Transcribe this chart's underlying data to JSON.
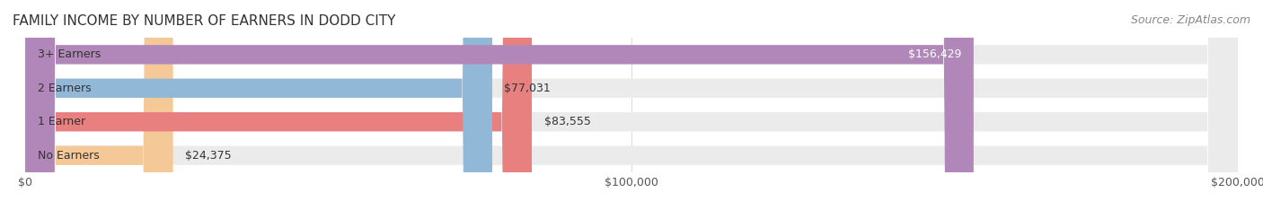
{
  "title": "FAMILY INCOME BY NUMBER OF EARNERS IN DODD CITY",
  "source": "Source: ZipAtlas.com",
  "categories": [
    "No Earners",
    "1 Earner",
    "2 Earners",
    "3+ Earners"
  ],
  "values": [
    24375,
    83555,
    77031,
    156429
  ],
  "bar_colors": [
    "#f5c897",
    "#e88080",
    "#92b8d8",
    "#b087b8"
  ],
  "bar_bg_color": "#f0f0f0",
  "value_labels": [
    "$24,375",
    "$83,555",
    "$77,031",
    "$156,429"
  ],
  "xlim": [
    0,
    200000
  ],
  "xtick_labels": [
    "$0",
    "$100,000",
    "$200,000"
  ],
  "xtick_values": [
    0,
    100000,
    200000
  ],
  "title_fontsize": 11,
  "source_fontsize": 9,
  "label_fontsize": 9,
  "value_fontsize": 9,
  "bar_height": 0.55,
  "background_color": "#ffffff",
  "bar_bg_alpha": 0.5
}
